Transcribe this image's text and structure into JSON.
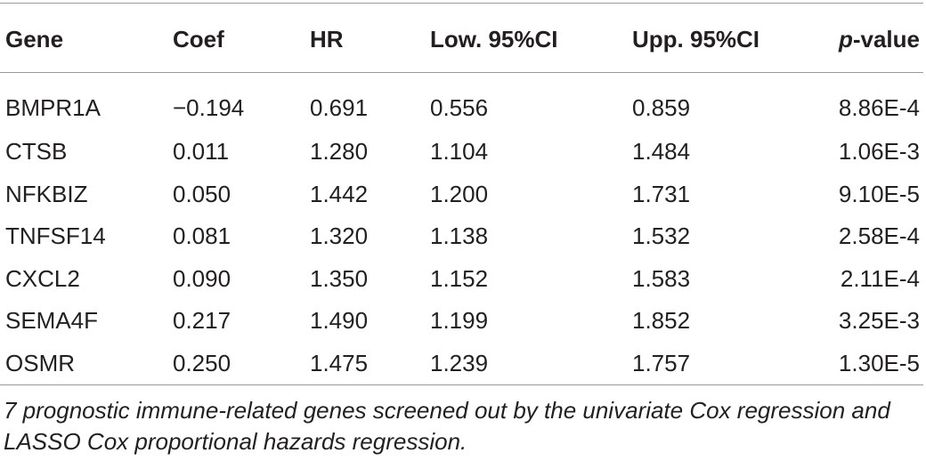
{
  "table": {
    "headers": {
      "gene": "Gene",
      "coef": "Coef",
      "hr": "HR",
      "low_ci": "Low. 95%CI",
      "upp_ci": "Upp. 95%CI",
      "p_italic": "p",
      "p_rest": "-value"
    },
    "rows": [
      {
        "gene": "BMPR1A",
        "coef": "−0.194",
        "hr": "0.691",
        "low": "0.556",
        "upp": "0.859",
        "p": "8.86E-4"
      },
      {
        "gene": "CTSB",
        "coef": "0.011",
        "hr": "1.280",
        "low": "1.104",
        "upp": "1.484",
        "p": "1.06E-3"
      },
      {
        "gene": "NFKBIZ",
        "coef": "0.050",
        "hr": "1.442",
        "low": "1.200",
        "upp": "1.731",
        "p": "9.10E-5"
      },
      {
        "gene": "TNFSF14",
        "coef": "0.081",
        "hr": "1.320",
        "low": "1.138",
        "upp": "1.532",
        "p": "2.58E-4"
      },
      {
        "gene": "CXCL2",
        "coef": "0.090",
        "hr": "1.350",
        "low": "1.152",
        "upp": "1.583",
        "p": "2.11E-4"
      },
      {
        "gene": "SEMA4F",
        "coef": "0.217",
        "hr": "1.490",
        "low": "1.199",
        "upp": "1.852",
        "p": "3.25E-3"
      },
      {
        "gene": "OSMR",
        "coef": "0.250",
        "hr": "1.475",
        "low": "1.239",
        "upp": "1.757",
        "p": "1.30E-5"
      }
    ]
  },
  "caption": "7 prognostic immune-related genes screened out by the univariate Cox regression and LASSO Cox proportional hazards regression."
}
